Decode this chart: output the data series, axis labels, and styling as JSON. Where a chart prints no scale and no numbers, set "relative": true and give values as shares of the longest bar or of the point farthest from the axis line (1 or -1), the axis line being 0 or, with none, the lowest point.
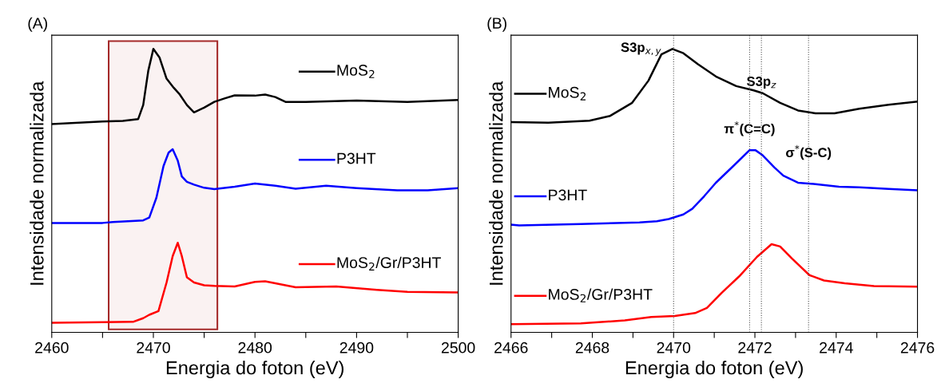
{
  "chart_data": [
    {
      "type": "line",
      "title": "(A)",
      "xlabel": "Energia do foton (eV)",
      "ylabel": "Intensidade normalizada",
      "relative": true,
      "legend": "right",
      "grid": false,
      "xlim": [
        2460,
        2500
      ],
      "xticks": [
        2460,
        {
          "value": 2465,
          "label": null
        },
        2470,
        {
          "value": 2475,
          "label": null
        },
        2480,
        {
          "value": 2485,
          "label": null
        },
        2490,
        {
          "value": 2495,
          "label": null
        },
        2500
      ],
      "bands": [
        {
          "axis": "x",
          "from": 2465.6,
          "to": 2476.3,
          "color": "#a52a2a"
        }
      ],
      "series": [
        {
          "name": "MoS$_{2}$",
          "color": "#000000",
          "x": [
            2460,
            2465,
            2467,
            2468.5,
            2469,
            2469.5,
            2470,
            2470.6,
            2471.3,
            2472,
            2472.6,
            2473.3,
            2474,
            2475,
            2476,
            2477,
            2478,
            2480,
            2481,
            2482,
            2483,
            2485,
            2490,
            2495,
            2500
          ],
          "values": [
            0.735,
            0.744,
            0.746,
            0.752,
            0.802,
            0.923,
            1.0,
            0.97,
            0.895,
            0.863,
            0.839,
            0.802,
            0.776,
            0.793,
            0.813,
            0.825,
            0.836,
            0.835,
            0.839,
            0.83,
            0.813,
            0.813,
            0.818,
            0.813,
            0.82
          ]
        },
        {
          "name": "P3HT",
          "color": "#0000ff",
          "x": [
            2460,
            2465,
            2466,
            2469,
            2469.6,
            2470.3,
            2471,
            2471.5,
            2471.9,
            2472.4,
            2472.8,
            2473.3,
            2474,
            2475,
            2476,
            2478,
            2480,
            2482,
            2484,
            2487,
            2490,
            2494,
            2497,
            2500
          ],
          "values": [
            0.386,
            0.386,
            0.389,
            0.395,
            0.405,
            0.475,
            0.587,
            0.634,
            0.646,
            0.606,
            0.55,
            0.531,
            0.521,
            0.51,
            0.505,
            0.514,
            0.525,
            0.517,
            0.507,
            0.517,
            0.509,
            0.501,
            0.501,
            0.509
          ]
        },
        {
          "name": "MoS$_{2}$/Gr/P3HT",
          "color": "#ff0000",
          "x": [
            2460,
            2465,
            2468,
            2469,
            2469.6,
            2470.5,
            2471.3,
            2471.9,
            2472.4,
            2472.8,
            2473.3,
            2474,
            2475,
            2476,
            2478,
            2480,
            2481,
            2483,
            2484,
            2488,
            2492,
            2495,
            2500
          ],
          "values": [
            0.034,
            0.036,
            0.037,
            0.05,
            0.062,
            0.075,
            0.176,
            0.269,
            0.316,
            0.269,
            0.194,
            0.176,
            0.166,
            0.164,
            0.162,
            0.178,
            0.18,
            0.166,
            0.159,
            0.162,
            0.15,
            0.143,
            0.141
          ]
        }
      ]
    },
    {
      "type": "line",
      "title": "(B)",
      "xlabel": "Energia do foton (eV)",
      "ylabel": "Intensidade normalizada",
      "relative": true,
      "legend": "left",
      "grid": false,
      "xlim": [
        2466,
        2476
      ],
      "xticks": [
        2466,
        {
          "value": 2467,
          "label": null
        },
        2468,
        {
          "value": 2469,
          "label": null
        },
        2470,
        {
          "value": 2471,
          "label": null
        },
        2472,
        {
          "value": 2473,
          "label": null
        },
        2474,
        {
          "value": 2475,
          "label": null
        },
        2476
      ],
      "ref_lines": [
        {
          "axis": "x",
          "value": 2470.0,
          "label": "S3p$_{x,y}$",
          "color": "#555555",
          "line_style": "dotted"
        },
        {
          "axis": "x",
          "value": 2471.87,
          "label": "π$^{*}$(C=C)",
          "color": "#555555",
          "line_style": "dotted"
        },
        {
          "axis": "x",
          "value": 2472.16,
          "label": "S3p$_{z}$",
          "color": "#555555",
          "line_style": "dotted"
        },
        {
          "axis": "x",
          "value": 2473.32,
          "label": "σ$^{*}$(S-C)",
          "color": "#555555",
          "line_style": "dotted"
        }
      ],
      "series": [
        {
          "name": "MoS$_{2}$",
          "color": "#000000",
          "x": [
            2466,
            2466.92,
            2467.93,
            2468.44,
            2468.98,
            2469.38,
            2469.7,
            2469.97,
            2470.24,
            2470.6,
            2471.04,
            2471.54,
            2471.97,
            2472.19,
            2472.62,
            2473.06,
            2473.49,
            2473.96,
            2474.57,
            2475.29,
            2476
          ],
          "values": [
            0.742,
            0.74,
            0.747,
            0.764,
            0.81,
            0.888,
            0.981,
            1.0,
            0.985,
            0.946,
            0.903,
            0.869,
            0.854,
            0.844,
            0.81,
            0.783,
            0.773,
            0.773,
            0.789,
            0.803,
            0.814
          ]
        },
        {
          "name": "P3HT",
          "color": "#0000ff",
          "x": [
            2466,
            2466.2,
            2467.72,
            2469.16,
            2469.59,
            2469.88,
            2470.24,
            2470.46,
            2470.75,
            2471.04,
            2471.47,
            2471.87,
            2472.01,
            2472.19,
            2472.48,
            2472.7,
            2473.06,
            2473.49,
            2474.07,
            2474.57,
            2475.29,
            2476
          ],
          "values": [
            0.38,
            0.377,
            0.382,
            0.388,
            0.392,
            0.4,
            0.416,
            0.436,
            0.48,
            0.528,
            0.587,
            0.643,
            0.643,
            0.625,
            0.582,
            0.553,
            0.528,
            0.523,
            0.514,
            0.512,
            0.506,
            0.501
          ]
        },
        {
          "name": "MoS$_{2}$/Gr/P3HT",
          "color": "#ff0000",
          "x": [
            2466,
            2467.72,
            2468.8,
            2469.45,
            2470.03,
            2470.53,
            2470.82,
            2471.18,
            2471.61,
            2472.05,
            2472.41,
            2472.62,
            2472.91,
            2473.34,
            2473.7,
            2474.21,
            2474.93,
            2476
          ],
          "values": [
            0.029,
            0.032,
            0.042,
            0.054,
            0.058,
            0.068,
            0.086,
            0.139,
            0.197,
            0.266,
            0.311,
            0.303,
            0.261,
            0.202,
            0.183,
            0.173,
            0.163,
            0.161
          ]
        }
      ]
    }
  ]
}
